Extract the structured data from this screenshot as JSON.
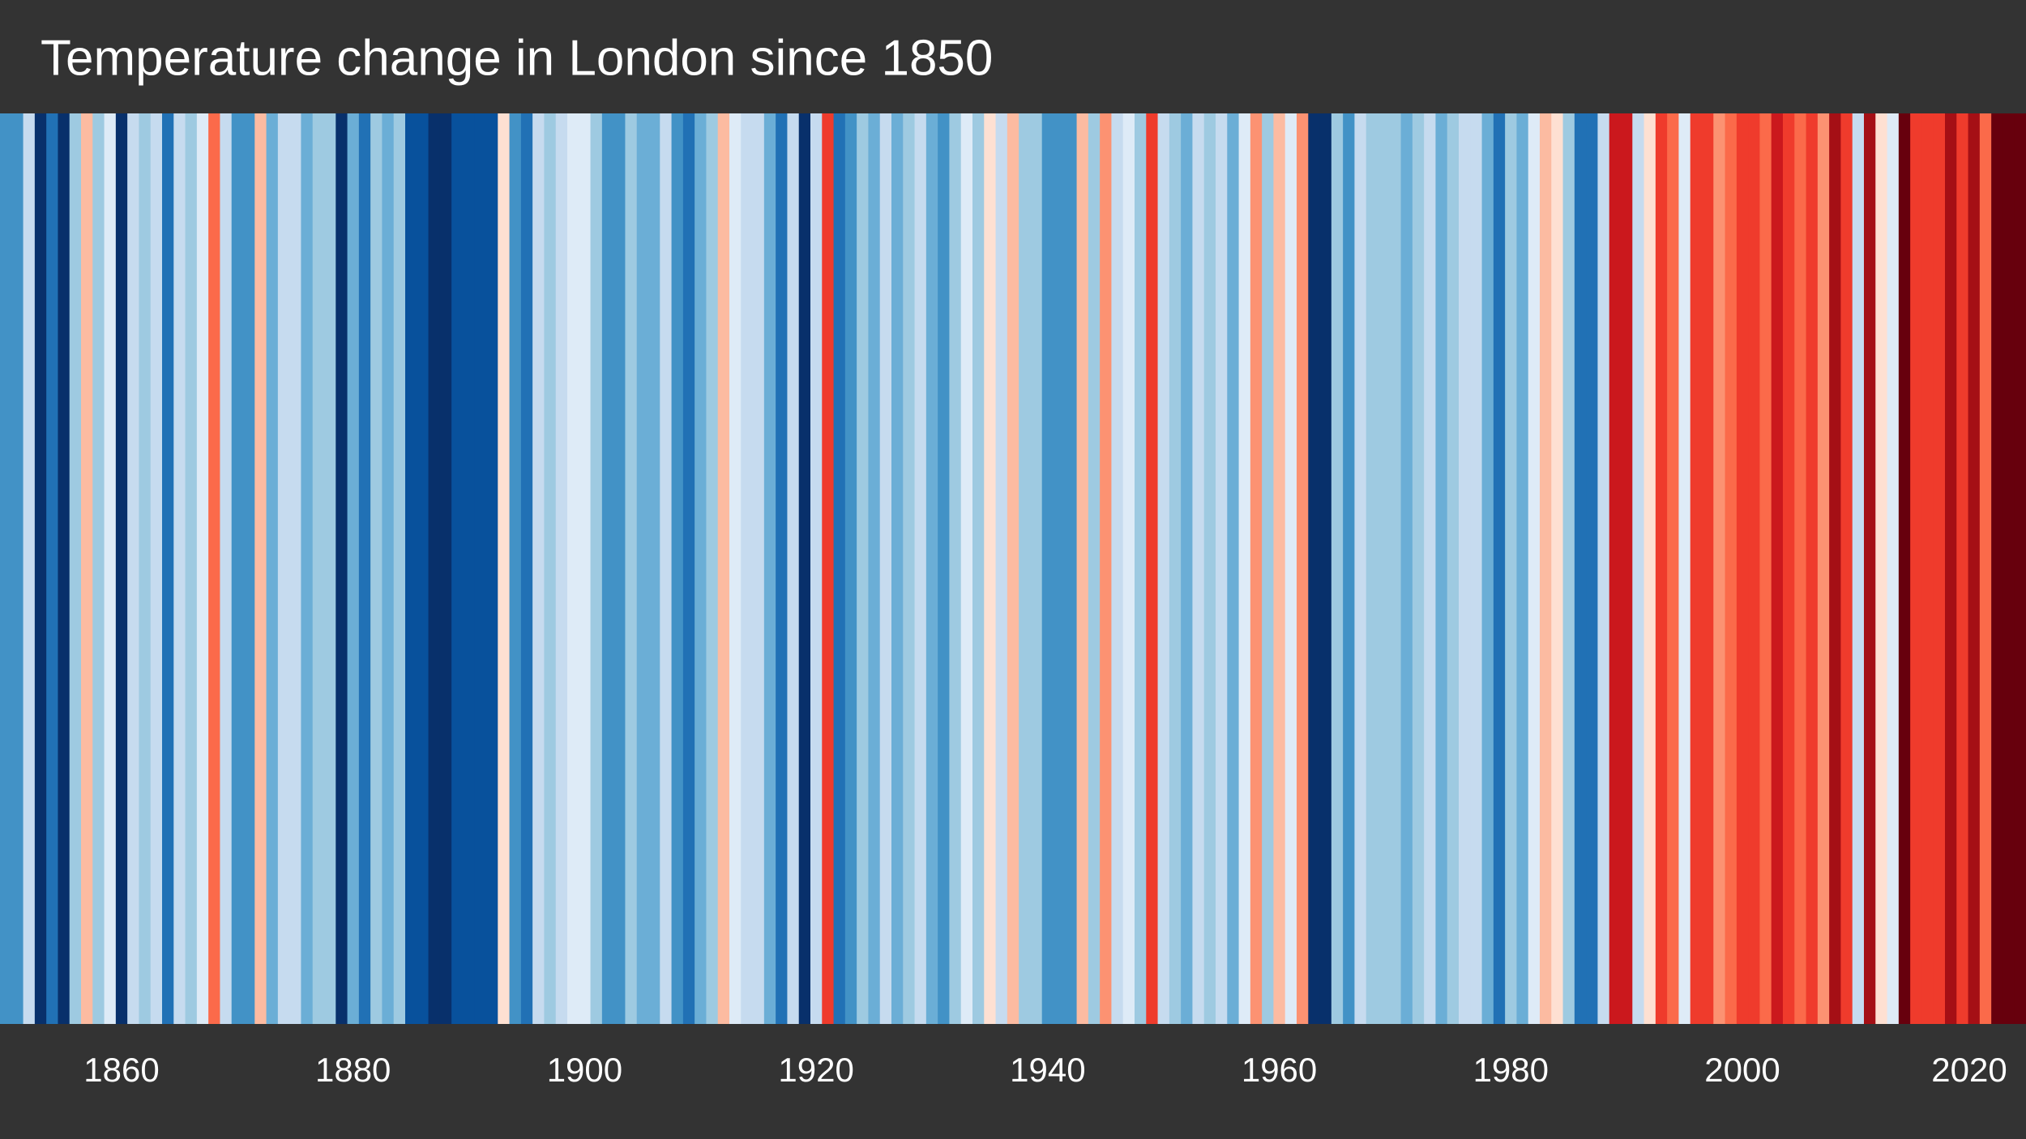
{
  "chart_data": {
    "type": "stripes",
    "title": "Temperature change in London since 1850",
    "x": [
      1850,
      1851,
      1852,
      1853,
      1854,
      1855,
      1856,
      1857,
      1858,
      1859,
      1860,
      1861,
      1862,
      1863,
      1864,
      1865,
      1866,
      1867,
      1868,
      1869,
      1870,
      1871,
      1872,
      1873,
      1874,
      1875,
      1876,
      1877,
      1878,
      1879,
      1880,
      1881,
      1882,
      1883,
      1884,
      1885,
      1886,
      1887,
      1888,
      1889,
      1890,
      1891,
      1892,
      1893,
      1894,
      1895,
      1896,
      1897,
      1898,
      1899,
      1900,
      1901,
      1902,
      1903,
      1904,
      1905,
      1906,
      1907,
      1908,
      1909,
      1910,
      1911,
      1912,
      1913,
      1914,
      1915,
      1916,
      1917,
      1918,
      1919,
      1920,
      1921,
      1922,
      1923,
      1924,
      1925,
      1926,
      1927,
      1928,
      1929,
      1930,
      1931,
      1932,
      1933,
      1934,
      1935,
      1936,
      1937,
      1938,
      1939,
      1940,
      1941,
      1942,
      1943,
      1944,
      1945,
      1946,
      1947,
      1948,
      1949,
      1950,
      1951,
      1952,
      1953,
      1954,
      1955,
      1956,
      1957,
      1958,
      1959,
      1960,
      1961,
      1962,
      1963,
      1964,
      1965,
      1966,
      1967,
      1968,
      1969,
      1970,
      1971,
      1972,
      1973,
      1974,
      1975,
      1976,
      1977,
      1978,
      1979,
      1980,
      1981,
      1982,
      1983,
      1984,
      1985,
      1986,
      1987,
      1988,
      1989,
      1990,
      1991,
      1992,
      1993,
      1994,
      1995,
      1996,
      1997,
      1998,
      1999,
      2000,
      2001,
      2002,
      2003,
      2004,
      2005,
      2006,
      2007,
      2008,
      2009,
      2010,
      2011,
      2012,
      2013,
      2014,
      2015,
      2016,
      2017,
      2018,
      2019,
      2020,
      2021,
      2022,
      2023,
      2024
    ],
    "values": [
      -0.45,
      -0.45,
      -0.15,
      -0.75,
      -0.55,
      -0.75,
      -0.25,
      0.15,
      -0.25,
      -0.05,
      -0.75,
      -0.15,
      -0.25,
      -0.15,
      -0.55,
      -0.15,
      -0.25,
      -0.05,
      0.35,
      -0.15,
      -0.45,
      -0.45,
      0.15,
      -0.35,
      -0.15,
      -0.15,
      -0.35,
      -0.25,
      -0.25,
      -0.75,
      -0.35,
      -0.55,
      -0.25,
      -0.35,
      -0.25,
      -0.65,
      -0.65,
      -0.75,
      -0.75,
      -0.65,
      -0.65,
      -0.65,
      -0.65,
      0.05,
      -0.45,
      -0.55,
      -0.15,
      -0.25,
      -0.15,
      -0.05,
      -0.05,
      -0.25,
      -0.45,
      -0.45,
      -0.25,
      -0.35,
      -0.35,
      -0.15,
      -0.45,
      -0.55,
      -0.35,
      -0.25,
      0.15,
      -0.05,
      -0.15,
      -0.15,
      -0.35,
      -0.55,
      -0.15,
      -0.75,
      -0.15,
      0.45,
      -0.55,
      -0.45,
      -0.25,
      -0.35,
      -0.15,
      -0.35,
      -0.25,
      -0.15,
      -0.35,
      -0.45,
      -0.25,
      -0.05,
      -0.25,
      0.05,
      -0.15,
      0.15,
      -0.25,
      -0.25,
      -0.45,
      -0.45,
      -0.45,
      0.15,
      -0.25,
      0.25,
      -0.15,
      -0.05,
      -0.25,
      0.45,
      -0.15,
      -0.25,
      -0.35,
      -0.15,
      -0.25,
      -0.15,
      -0.35,
      -0.05,
      0.25,
      -0.25,
      0.15,
      -0.05,
      0.25,
      -0.75,
      -0.75,
      -0.25,
      -0.45,
      -0.15,
      -0.25,
      -0.25,
      -0.25,
      -0.35,
      -0.25,
      -0.15,
      -0.35,
      -0.25,
      -0.15,
      -0.15,
      -0.35,
      -0.55,
      -0.25,
      -0.35,
      -0.05,
      0.15,
      0.05,
      -0.25,
      -0.55,
      -0.55,
      -0.15,
      0.55,
      0.55,
      -0.15,
      0.05,
      0.45,
      0.35,
      -0.05,
      0.45,
      0.45,
      0.25,
      0.35,
      0.45,
      0.45,
      0.35,
      0.55,
      0.45,
      0.35,
      0.45,
      0.25,
      0.65,
      0.45,
      -0.15,
      0.65,
      0.05,
      -0.05,
      0.75,
      0.45,
      0.45,
      0.45,
      0.65,
      0.45,
      0.65,
      0.35,
      0.75,
      0.75,
      0.75
    ],
    "palette": [
      "#08306b",
      "#08519c",
      "#2171b5",
      "#4292c6",
      "#6baed6",
      "#9ecae1",
      "#c6dbef",
      "#deebf7",
      "#fee0d2",
      "#fcbba1",
      "#fc9272",
      "#fb6a4a",
      "#ef3b2c",
      "#cb181d",
      "#a50f15",
      "#67000d"
    ],
    "vlim": [
      -0.8,
      0.8
    ],
    "xlim": [
      1849.5,
      2024.5
    ],
    "xticks": [
      1860,
      1880,
      1900,
      1920,
      1940,
      1960,
      1980,
      2000,
      2020
    ],
    "background": "#333333"
  }
}
